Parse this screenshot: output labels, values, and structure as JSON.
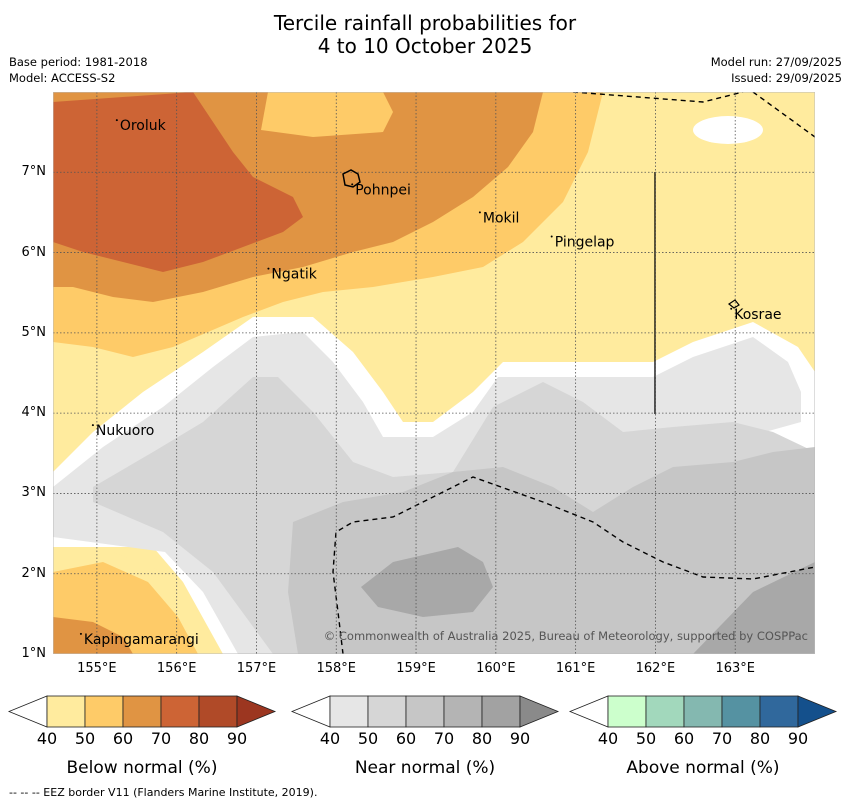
{
  "title": {
    "line1": "Tercile rainfall probabilities for",
    "line2": "4 to 10 October 2025"
  },
  "meta": {
    "base_period": "Base period: 1981-2018",
    "model": "Model: ACCESS-S2",
    "model_run": "Model run: 27/09/2025",
    "issued": "Issued: 29/09/2025"
  },
  "map": {
    "lat_labels": [
      "7°N",
      "6°N",
      "5°N",
      "4°N",
      "3°N",
      "2°N",
      "1°N"
    ],
    "lon_labels": [
      "155°E",
      "156°E",
      "157°E",
      "158°E",
      "159°E",
      "160°E",
      "161°E",
      "162°E",
      "163°E"
    ],
    "places": [
      {
        "name": "Oroluk",
        "lat": 7.65,
        "lon": 155.25
      },
      {
        "name": "Pohnpei",
        "lat": 6.85,
        "lon": 158.2
      },
      {
        "name": "Mokil",
        "lat": 6.5,
        "lon": 159.8
      },
      {
        "name": "Pingelap",
        "lat": 6.2,
        "lon": 160.7
      },
      {
        "name": "Ngatik",
        "lat": 5.8,
        "lon": 157.15
      },
      {
        "name": "Kosrae",
        "lat": 5.3,
        "lon": 162.95
      },
      {
        "name": "Nukuoro",
        "lat": 3.85,
        "lon": 154.95
      },
      {
        "name": "Kapingamarangi",
        "lat": 1.25,
        "lon": 154.8
      }
    ],
    "copyright": "© Commonwealth of Australia 2025, Bureau of Meteorology, supported by COSPPac"
  },
  "colorbars": [
    {
      "title": "Below normal (%)",
      "ticks": [
        "40",
        "50",
        "60",
        "70",
        "80",
        "90"
      ],
      "colors": [
        "#ffffff",
        "#ffeb9e",
        "#fecb68",
        "#e09443",
        "#cd6435",
        "#b04a28",
        "#9c3620"
      ]
    },
    {
      "title": "Near normal (%)",
      "ticks": [
        "40",
        "50",
        "60",
        "70",
        "80",
        "90"
      ],
      "colors": [
        "#ffffff",
        "#e6e6e6",
        "#d6d6d6",
        "#c6c6c6",
        "#b4b4b4",
        "#a2a2a2",
        "#8a8a8a"
      ]
    },
    {
      "title": "Above normal (%)",
      "ticks": [
        "40",
        "50",
        "60",
        "70",
        "80",
        "90"
      ],
      "colors": [
        "#ffffff",
        "#ccffcc",
        "#a2d8bc",
        "#84b8b0",
        "#5592a2",
        "#30689c",
        "#14508c"
      ]
    }
  ],
  "footnote": "--  --  -- EEZ border V11 (Flanders Marine Institute, 2019)."
}
